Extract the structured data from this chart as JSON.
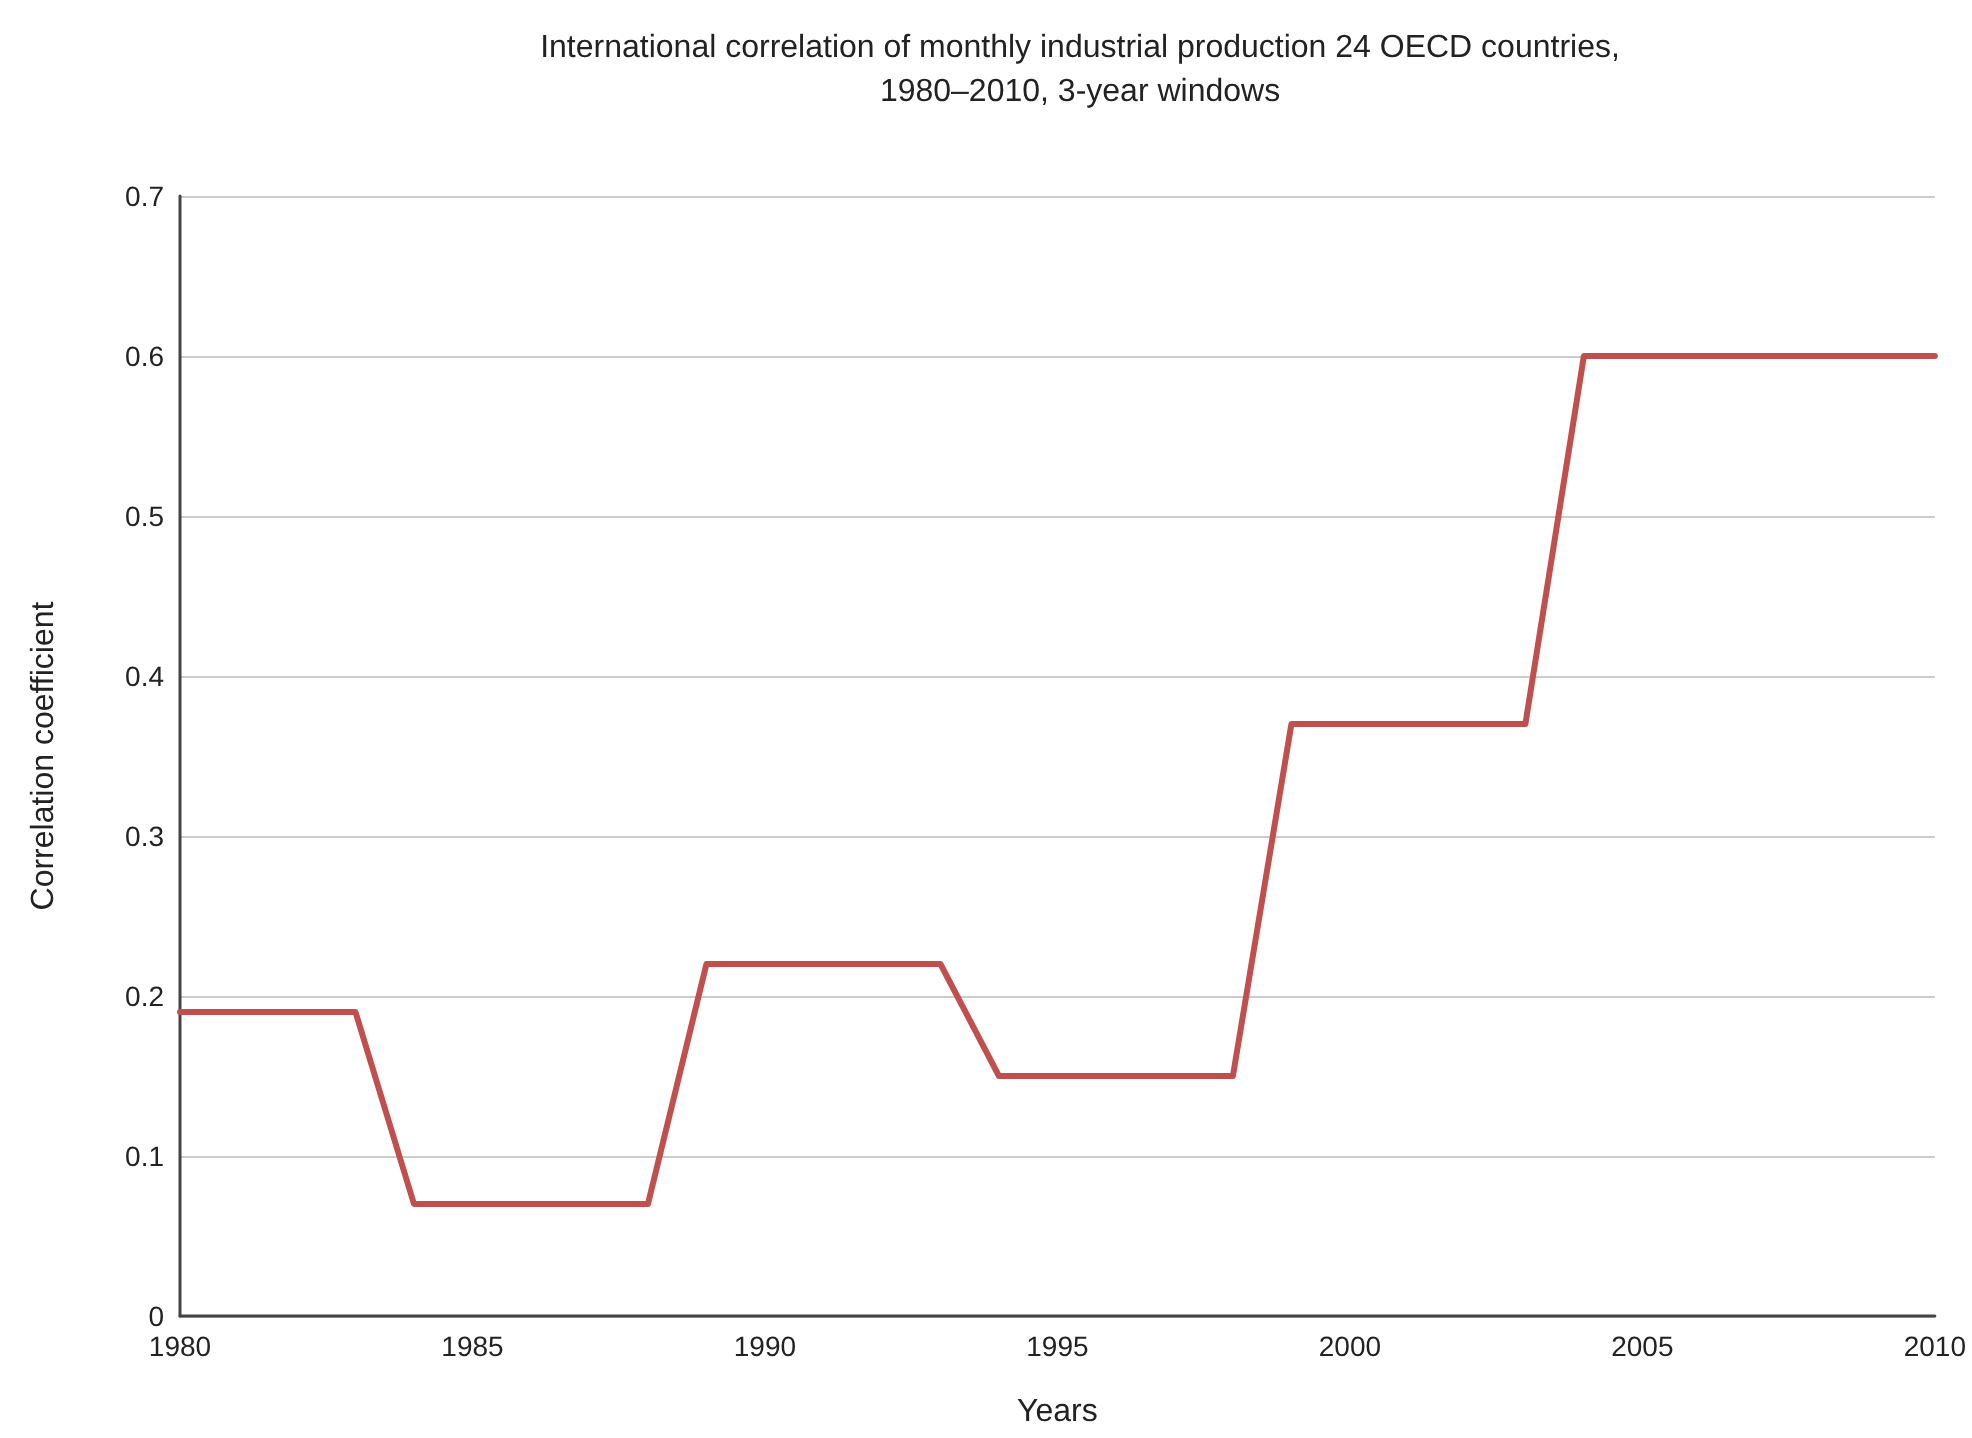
{
  "chart_data": {
    "type": "line",
    "title": "International correlation of monthly industrial production 24 OECD countries,\n1980–2010, 3-year windows",
    "xlabel": "Years",
    "ylabel": "Correlation coefficient",
    "x": [
      1980,
      1983,
      1984,
      1988,
      1989,
      1993,
      1994,
      1998,
      1999,
      2003,
      2004,
      2010
    ],
    "series": [
      {
        "color": "#c0504d",
        "values": [
          0.19,
          0.19,
          0.07,
          0.07,
          0.22,
          0.22,
          0.15,
          0.15,
          0.37,
          0.37,
          0.6,
          0.6
        ]
      }
    ],
    "xlim": [
      1980,
      2010
    ],
    "xticks": [
      1980,
      1985,
      1990,
      1995,
      2000,
      2005,
      2010
    ],
    "ylim": [
      0,
      0.7
    ],
    "yticks": [
      0,
      0.1,
      0.2,
      0.3,
      0.4,
      0.5,
      0.6,
      0.7
    ],
    "grid": "y",
    "marker": "none",
    "line_style": "solid"
  }
}
